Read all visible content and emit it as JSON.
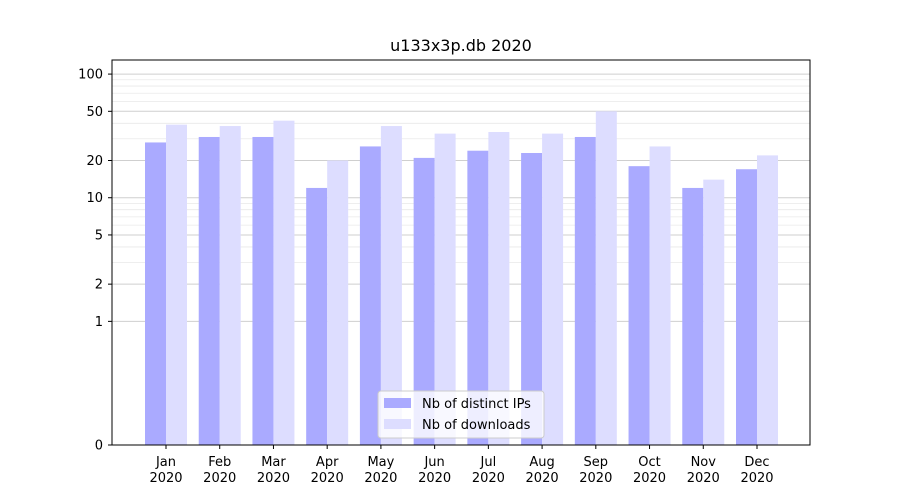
{
  "chart_data": {
    "type": "bar",
    "title": "u133x3p.db 2020",
    "xlabel": "",
    "ylabel": "",
    "scale": "symlog",
    "ylim": [
      0,
      130
    ],
    "yticks": [
      0,
      1,
      2,
      5,
      10,
      20,
      50,
      100
    ],
    "categories": [
      [
        "Jan",
        "2020"
      ],
      [
        "Feb",
        "2020"
      ],
      [
        "Mar",
        "2020"
      ],
      [
        "Apr",
        "2020"
      ],
      [
        "May",
        "2020"
      ],
      [
        "Jun",
        "2020"
      ],
      [
        "Jul",
        "2020"
      ],
      [
        "Aug",
        "2020"
      ],
      [
        "Sep",
        "2020"
      ],
      [
        "Oct",
        "2020"
      ],
      [
        "Nov",
        "2020"
      ],
      [
        "Dec",
        "2020"
      ]
    ],
    "series": [
      {
        "name": "Nb of distinct IPs",
        "color": "#aaaaff",
        "values": [
          28,
          31,
          31,
          12,
          26,
          21,
          24,
          23,
          31,
          18,
          12,
          17
        ]
      },
      {
        "name": "Nb of downloads",
        "color": "#ddddff",
        "values": [
          39,
          38,
          42,
          20,
          38,
          33,
          34,
          33,
          50,
          26,
          14,
          22
        ]
      }
    ],
    "legend": "bottom-center",
    "grid": true
  }
}
